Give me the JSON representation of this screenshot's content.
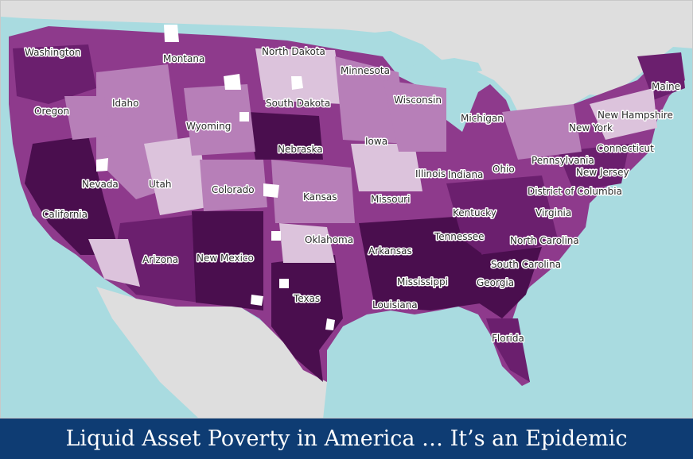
{
  "banner": {
    "title": "Liquid Asset Poverty in America … It’s an Epidemic"
  },
  "map": {
    "colors": {
      "water": "#a9dbe0",
      "land_outside": "#dedede",
      "highest": "#4a0e4e",
      "high": "#6b1f6e",
      "medium": "#8e3a8c",
      "low": "#b77fb8",
      "lowest": "#dcc3dc",
      "no_data": "#ffffff"
    },
    "states": [
      {
        "id": "washington",
        "label": "Washington"
      },
      {
        "id": "oregon",
        "label": "Oregon"
      },
      {
        "id": "california",
        "label": "California"
      },
      {
        "id": "nevada",
        "label": "Nevada"
      },
      {
        "id": "idaho",
        "label": "Idaho"
      },
      {
        "id": "montana",
        "label": "Montana"
      },
      {
        "id": "wyoming",
        "label": "Wyoming"
      },
      {
        "id": "utah",
        "label": "Utah"
      },
      {
        "id": "colorado",
        "label": "Colorado"
      },
      {
        "id": "arizona",
        "label": "Arizona"
      },
      {
        "id": "new-mexico",
        "label": "New Mexico"
      },
      {
        "id": "north-dakota",
        "label": "North Dakota"
      },
      {
        "id": "south-dakota",
        "label": "South Dakota"
      },
      {
        "id": "nebraska",
        "label": "Nebraska"
      },
      {
        "id": "kansas",
        "label": "Kansas"
      },
      {
        "id": "oklahoma",
        "label": "Oklahoma"
      },
      {
        "id": "texas",
        "label": "Texas"
      },
      {
        "id": "minnesota",
        "label": "Minnesota"
      },
      {
        "id": "iowa",
        "label": "Iowa"
      },
      {
        "id": "missouri",
        "label": "Missouri"
      },
      {
        "id": "arkansas",
        "label": "Arkansas"
      },
      {
        "id": "louisiana",
        "label": "Louisiana"
      },
      {
        "id": "wisconsin",
        "label": "Wisconsin"
      },
      {
        "id": "illinois",
        "label": "Illinois"
      },
      {
        "id": "michigan",
        "label": "Michigan"
      },
      {
        "id": "indiana",
        "label": "Indiana"
      },
      {
        "id": "ohio",
        "label": "Ohio"
      },
      {
        "id": "kentucky",
        "label": "Kentucky"
      },
      {
        "id": "tennessee",
        "label": "Tennessee"
      },
      {
        "id": "mississippi",
        "label": "Mississippi"
      },
      {
        "id": "georgia",
        "label": "Georgia"
      },
      {
        "id": "florida",
        "label": "Florida"
      },
      {
        "id": "south-carolina",
        "label": "South Carolina"
      },
      {
        "id": "north-carolina",
        "label": "North Carolina"
      },
      {
        "id": "virginia",
        "label": "Virginia"
      },
      {
        "id": "district-of-columbia",
        "label": "District of Columbia"
      },
      {
        "id": "pennsylvania",
        "label": "Pennsylvania"
      },
      {
        "id": "new-jersey",
        "label": "New Jersey"
      },
      {
        "id": "new-york",
        "label": "New York"
      },
      {
        "id": "connecticut",
        "label": "Connecticut"
      },
      {
        "id": "new-hampshire",
        "label": "New Hampshire"
      },
      {
        "id": "maine",
        "label": "Maine"
      }
    ]
  }
}
